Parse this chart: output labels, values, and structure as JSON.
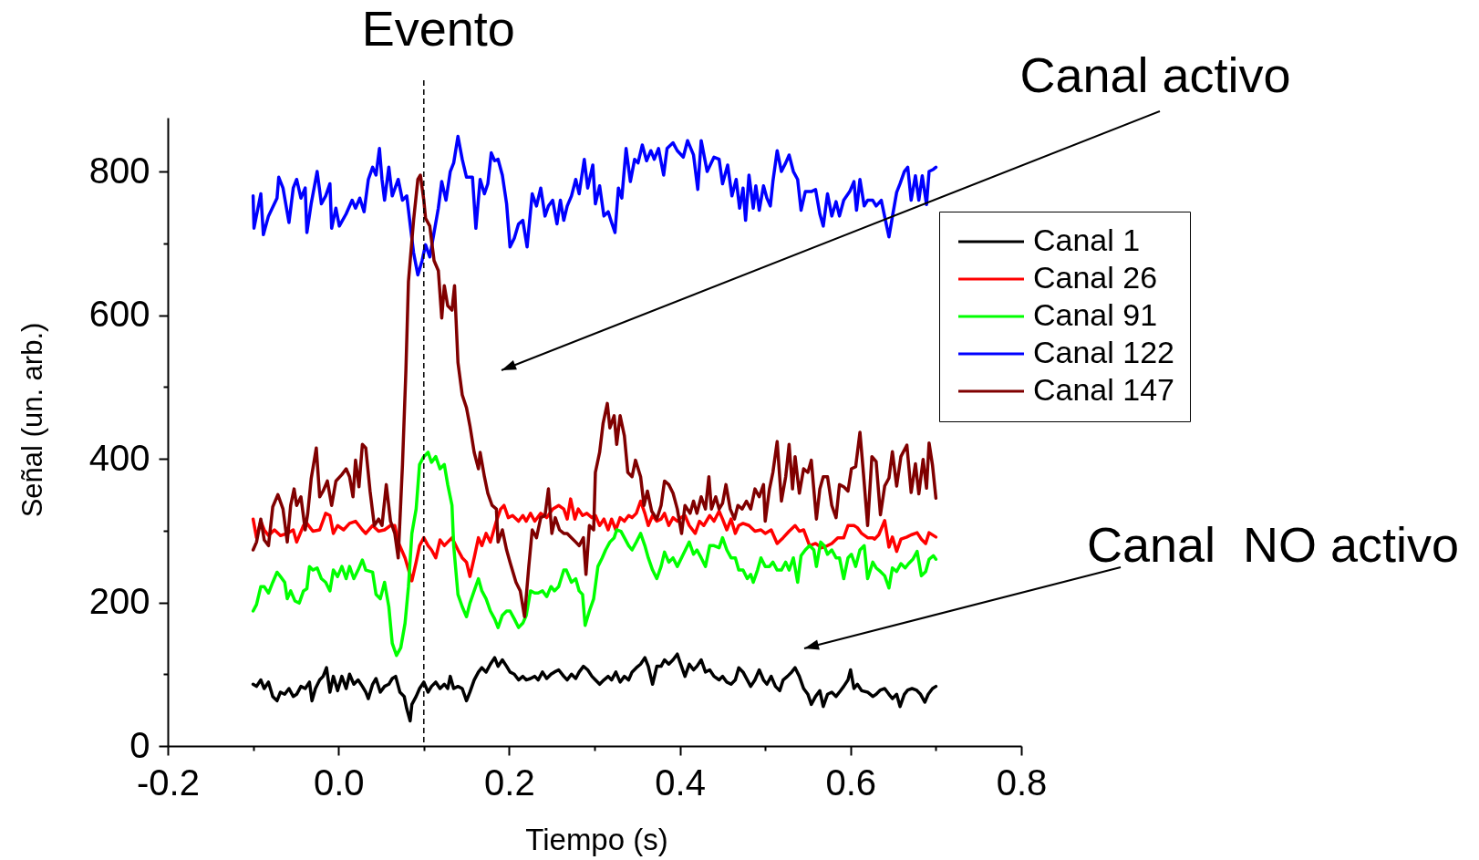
{
  "chart_data": {
    "type": "line",
    "xlabel": "Tiempo (s)",
    "ylabel": "Señal (un. arb.)",
    "xlim": [
      -0.2,
      0.8
    ],
    "ylim": [
      0,
      875
    ],
    "xticks": [
      -0.2,
      {
        "value": -0.1,
        "label": null
      },
      {
        "value": 0,
        "label": "0.0"
      },
      {
        "value": 0.1,
        "label": null
      },
      0.2,
      {
        "value": 0.3,
        "label": null
      },
      0.4,
      {
        "value": 0.5,
        "label": null
      },
      0.6,
      {
        "value": 0.7,
        "label": null
      },
      0.8
    ],
    "yticks": [
      0,
      {
        "value": 100,
        "label": null
      },
      200,
      {
        "value": 300,
        "label": null
      },
      400,
      {
        "value": 500,
        "label": null
      },
      600,
      {
        "value": 700,
        "label": null
      },
      800
    ],
    "legend": "top right",
    "ref_lines": [
      {
        "axis": "x",
        "value": 0.1,
        "label": "Evento",
        "color": "#000000",
        "line_style": "dashed"
      }
    ],
    "annotations": [
      "Canal activo",
      "Canal  NO activo"
    ],
    "series": [
      {
        "name": "Canal 1",
        "color": "#000000",
        "x": [
          -0.1,
          -0.096,
          -0.091,
          -0.087,
          -0.082,
          -0.077,
          -0.072,
          -0.068,
          -0.063,
          -0.058,
          -0.053,
          -0.049,
          -0.044,
          -0.039,
          -0.034,
          -0.031,
          -0.027,
          -0.022,
          -0.018,
          -0.014,
          -0.01,
          -0.006,
          -0.001,
          0.004,
          0.009,
          0.013,
          0.018,
          0.023,
          0.028,
          0.032,
          0.035,
          0.04,
          0.044,
          0.049,
          0.054,
          0.059,
          0.063,
          0.067,
          0.072,
          0.077,
          0.08,
          0.084,
          0.086,
          0.091,
          0.095,
          0.1,
          0.105,
          0.109,
          0.114,
          0.119,
          0.124,
          0.128,
          0.131,
          0.135,
          0.14,
          0.145,
          0.15,
          0.154,
          0.159,
          0.164,
          0.168,
          0.173,
          0.178,
          0.183,
          0.187,
          0.192,
          0.197,
          0.201,
          0.206,
          0.211,
          0.216,
          0.22,
          0.225,
          0.23,
          0.234,
          0.239,
          0.244,
          0.249,
          0.253,
          0.258,
          0.264,
          0.268,
          0.273,
          0.278,
          0.282,
          0.287,
          0.292,
          0.297,
          0.301,
          0.306,
          0.311,
          0.316,
          0.32,
          0.325,
          0.33,
          0.335,
          0.34,
          0.344,
          0.349,
          0.354,
          0.359,
          0.363,
          0.368,
          0.373,
          0.378,
          0.382,
          0.387,
          0.392,
          0.397,
          0.401,
          0.406,
          0.411,
          0.416,
          0.42,
          0.425,
          0.43,
          0.435,
          0.44,
          0.446,
          0.45,
          0.455,
          0.46,
          0.465,
          0.469,
          0.474,
          0.479,
          0.483,
          0.488,
          0.493,
          0.498,
          0.502,
          0.507,
          0.512,
          0.517,
          0.521,
          0.526,
          0.531,
          0.535,
          0.54,
          0.545,
          0.55,
          0.554,
          0.559,
          0.564,
          0.568,
          0.573,
          0.578,
          0.583,
          0.587,
          0.592,
          0.597,
          0.6,
          0.604,
          0.608,
          0.613,
          0.62,
          0.626,
          0.63,
          0.635,
          0.64,
          0.645,
          0.649,
          0.654,
          0.658,
          0.663,
          0.667,
          0.672,
          0.677,
          0.682,
          0.687,
          0.691,
          0.696,
          0.7
        ],
        "values": [
          86,
          83,
          92,
          80,
          89,
          69,
          63,
          75,
          72,
          80,
          69,
          72,
          83,
          80,
          89,
          63,
          80,
          92,
          97,
          109,
          75,
          97,
          77,
          97,
          80,
          100,
          86,
          92,
          83,
          75,
          66,
          86,
          94,
          75,
          83,
          86,
          94,
          97,
          75,
          69,
          52,
          35,
          58,
          69,
          80,
          89,
          75,
          83,
          89,
          80,
          86,
          80,
          97,
          80,
          83,
          80,
          63,
          75,
          92,
          103,
          109,
          103,
          114,
          123,
          111,
          120,
          111,
          103,
          100,
          92,
          97,
          92,
          94,
          97,
          92,
          103,
          94,
          100,
          103,
          106,
          97,
          92,
          100,
          94,
          103,
          111,
          106,
          97,
          92,
          86,
          92,
          97,
          92,
          103,
          89,
          97,
          92,
          103,
          109,
          114,
          123,
          111,
          86,
          111,
          111,
          120,
          114,
          120,
          128,
          114,
          97,
          114,
          106,
          111,
          120,
          103,
          106,
          97,
          92,
          97,
          89,
          86,
          92,
          109,
          103,
          92,
          83,
          92,
          106,
          92,
          86,
          97,
          83,
          77,
          92,
          97,
          103,
          109,
          97,
          80,
          72,
          58,
          69,
          77,
          55,
          72,
          75,
          69,
          75,
          83,
          92,
          106,
          80,
          86,
          77,
          75,
          69,
          72,
          78,
          80,
          72,
          66,
          72,
          55,
          72,
          78,
          80,
          78,
          72,
          61,
          72,
          80,
          83
        ]
      },
      {
        "name": "Canal 26",
        "color": "#ff0000",
        "x": [
          -0.1,
          -0.096,
          -0.091,
          -0.087,
          -0.082,
          -0.075,
          -0.068,
          -0.06,
          -0.053,
          -0.049,
          -0.041,
          -0.037,
          -0.03,
          -0.022,
          -0.015,
          -0.01,
          -0.006,
          -0.001,
          0.006,
          0.013,
          0.02,
          0.028,
          0.032,
          0.04,
          0.047,
          0.054,
          0.061,
          0.066,
          0.07,
          0.078,
          0.086,
          0.091,
          0.095,
          0.1,
          0.105,
          0.109,
          0.114,
          0.119,
          0.124,
          0.128,
          0.133,
          0.14,
          0.145,
          0.15,
          0.154,
          0.159,
          0.164,
          0.168,
          0.173,
          0.178,
          0.185,
          0.19,
          0.194,
          0.199,
          0.204,
          0.211,
          0.216,
          0.22,
          0.225,
          0.23,
          0.237,
          0.244,
          0.251,
          0.258,
          0.264,
          0.268,
          0.272,
          0.277,
          0.281,
          0.286,
          0.291,
          0.297,
          0.301,
          0.306,
          0.311,
          0.316,
          0.32,
          0.325,
          0.33,
          0.335,
          0.34,
          0.344,
          0.349,
          0.354,
          0.359,
          0.363,
          0.368,
          0.373,
          0.378,
          0.382,
          0.387,
          0.392,
          0.397,
          0.401,
          0.406,
          0.411,
          0.418,
          0.423,
          0.428,
          0.435,
          0.44,
          0.446,
          0.45,
          0.455,
          0.46,
          0.465,
          0.469,
          0.474,
          0.481,
          0.488,
          0.495,
          0.5,
          0.507,
          0.514,
          0.521,
          0.528,
          0.535,
          0.54,
          0.545,
          0.552,
          0.559,
          0.566,
          0.573,
          0.578,
          0.585,
          0.592,
          0.597,
          0.604,
          0.608,
          0.613,
          0.62,
          0.626,
          0.628,
          0.633,
          0.64,
          0.645,
          0.649,
          0.654,
          0.659,
          0.666,
          0.671,
          0.678,
          0.683,
          0.688,
          0.692,
          0.7
        ],
        "values": [
          316,
          290,
          313,
          301,
          293,
          301,
          293,
          296,
          301,
          284,
          307,
          310,
          299,
          301,
          324,
          321,
          296,
          307,
          301,
          310,
          313,
          301,
          296,
          307,
          299,
          301,
          307,
          307,
          284,
          262,
          230,
          256,
          279,
          290,
          279,
          273,
          262,
          287,
          279,
          284,
          290,
          273,
          262,
          256,
          236,
          262,
          290,
          279,
          296,
          284,
          313,
          330,
          335,
          318,
          321,
          313,
          321,
          313,
          324,
          313,
          324,
          318,
          330,
          335,
          330,
          316,
          344,
          316,
          330,
          321,
          324,
          318,
          321,
          307,
          316,
          301,
          316,
          301,
          318,
          313,
          321,
          318,
          324,
          341,
          324,
          307,
          321,
          313,
          316,
          324,
          307,
          318,
          313,
          318,
          321,
          307,
          296,
          313,
          307,
          321,
          313,
          327,
          316,
          301,
          316,
          296,
          307,
          310,
          307,
          299,
          301,
          296,
          301,
          282,
          290,
          299,
          307,
          299,
          301,
          279,
          282,
          276,
          279,
          282,
          290,
          290,
          307,
          307,
          304,
          296,
          290,
          290,
          288,
          294,
          314,
          277,
          291,
          271,
          288,
          291,
          294,
          297,
          288,
          282,
          297,
          291
        ]
      },
      {
        "name": "Canal 91",
        "color": "#00ff00",
        "x": [
          -0.1,
          -0.096,
          -0.091,
          -0.087,
          -0.082,
          -0.077,
          -0.072,
          -0.068,
          -0.063,
          -0.06,
          -0.056,
          -0.051,
          -0.046,
          -0.041,
          -0.037,
          -0.034,
          -0.03,
          -0.025,
          -0.02,
          -0.015,
          -0.01,
          -0.006,
          -0.001,
          0.004,
          0.009,
          0.013,
          0.018,
          0.023,
          0.028,
          0.032,
          0.04,
          0.044,
          0.049,
          0.054,
          0.059,
          0.063,
          0.068,
          0.073,
          0.078,
          0.082,
          0.086,
          0.091,
          0.095,
          0.1,
          0.105,
          0.109,
          0.114,
          0.119,
          0.124,
          0.128,
          0.133,
          0.135,
          0.14,
          0.145,
          0.15,
          0.154,
          0.159,
          0.164,
          0.168,
          0.173,
          0.178,
          0.183,
          0.187,
          0.192,
          0.197,
          0.201,
          0.206,
          0.211,
          0.216,
          0.22,
          0.225,
          0.23,
          0.234,
          0.239,
          0.244,
          0.249,
          0.253,
          0.258,
          0.264,
          0.267,
          0.273,
          0.278,
          0.282,
          0.286,
          0.289,
          0.294,
          0.299,
          0.304,
          0.309,
          0.313,
          0.318,
          0.323,
          0.326,
          0.331,
          0.335,
          0.34,
          0.344,
          0.349,
          0.354,
          0.359,
          0.363,
          0.368,
          0.373,
          0.378,
          0.382,
          0.387,
          0.392,
          0.397,
          0.404,
          0.411,
          0.416,
          0.42,
          0.425,
          0.43,
          0.435,
          0.44,
          0.446,
          0.45,
          0.455,
          0.46,
          0.465,
          0.469,
          0.474,
          0.479,
          0.483,
          0.486,
          0.491,
          0.495,
          0.5,
          0.505,
          0.509,
          0.514,
          0.519,
          0.524,
          0.528,
          0.533,
          0.538,
          0.542,
          0.547,
          0.552,
          0.557,
          0.56,
          0.565,
          0.569,
          0.573,
          0.578,
          0.583,
          0.587,
          0.592,
          0.597,
          0.601,
          0.606,
          0.611,
          0.616,
          0.62,
          0.626,
          0.63,
          0.635,
          0.64,
          0.645,
          0.649,
          0.654,
          0.659,
          0.664,
          0.668,
          0.673,
          0.678,
          0.683,
          0.688,
          0.692,
          0.697,
          0.7
        ],
        "values": [
          188,
          197,
          222,
          222,
          213,
          228,
          242,
          236,
          228,
          205,
          216,
          202,
          199,
          216,
          219,
          250,
          245,
          248,
          233,
          228,
          216,
          245,
          236,
          250,
          233,
          250,
          233,
          245,
          259,
          245,
          242,
          211,
          205,
          228,
          194,
          143,
          126,
          137,
          171,
          222,
          296,
          330,
          392,
          403,
          409,
          395,
          403,
          386,
          392,
          364,
          335,
          279,
          211,
          194,
          180,
          199,
          216,
          233,
          216,
          205,
          188,
          177,
          165,
          182,
          188,
          188,
          177,
          165,
          171,
          182,
          216,
          213,
          213,
          216,
          208,
          222,
          216,
          222,
          245,
          245,
          228,
          233,
          216,
          211,
          168,
          188,
          205,
          250,
          262,
          273,
          284,
          290,
          301,
          299,
          290,
          279,
          273,
          284,
          296,
          279,
          262,
          245,
          233,
          250,
          270,
          256,
          262,
          250,
          267,
          284,
          267,
          273,
          262,
          250,
          279,
          279,
          276,
          290,
          273,
          262,
          262,
          245,
          245,
          233,
          239,
          228,
          245,
          262,
          250,
          250,
          256,
          245,
          245,
          256,
          245,
          262,
          228,
          265,
          273,
          279,
          273,
          250,
          284,
          279,
          267,
          273,
          262,
          262,
          233,
          262,
          267,
          250,
          273,
          279,
          233,
          256,
          248,
          243,
          237,
          220,
          248,
          243,
          254,
          248,
          254,
          260,
          271,
          237,
          243,
          260,
          265,
          260
        ]
      },
      {
        "name": "Canal 122",
        "color": "#0000ff",
        "x": [
          -0.1,
          -0.099,
          -0.091,
          -0.088,
          -0.082,
          -0.072,
          -0.07,
          -0.065,
          -0.058,
          -0.053,
          -0.049,
          -0.044,
          -0.039,
          -0.037,
          -0.032,
          -0.025,
          -0.02,
          -0.015,
          -0.01,
          -0.008,
          -0.003,
          0.001,
          0.009,
          0.016,
          0.02,
          0.025,
          0.03,
          0.035,
          0.04,
          0.044,
          0.048,
          0.051,
          0.054,
          0.059,
          0.063,
          0.07,
          0.075,
          0.08,
          0.088,
          0.093,
          0.098,
          0.102,
          0.107,
          0.112,
          0.117,
          0.121,
          0.126,
          0.131,
          0.135,
          0.14,
          0.145,
          0.15,
          0.157,
          0.161,
          0.166,
          0.171,
          0.175,
          0.179,
          0.183,
          0.187,
          0.192,
          0.197,
          0.201,
          0.206,
          0.211,
          0.216,
          0.221,
          0.227,
          0.232,
          0.237,
          0.242,
          0.246,
          0.251,
          0.256,
          0.26,
          0.264,
          0.268,
          0.273,
          0.278,
          0.282,
          0.288,
          0.292,
          0.298,
          0.301,
          0.306,
          0.311,
          0.316,
          0.32,
          0.324,
          0.328,
          0.332,
          0.337,
          0.342,
          0.347,
          0.351,
          0.356,
          0.361,
          0.366,
          0.37,
          0.375,
          0.381,
          0.385,
          0.392,
          0.397,
          0.404,
          0.409,
          0.416,
          0.421,
          0.425,
          0.432,
          0.44,
          0.446,
          0.45,
          0.456,
          0.461,
          0.466,
          0.47,
          0.474,
          0.477,
          0.481,
          0.486,
          0.489,
          0.493,
          0.498,
          0.502,
          0.506,
          0.509,
          0.514,
          0.519,
          0.524,
          0.528,
          0.533,
          0.538,
          0.542,
          0.547,
          0.554,
          0.559,
          0.564,
          0.568,
          0.573,
          0.578,
          0.583,
          0.587,
          0.592,
          0.599,
          0.604,
          0.607,
          0.611,
          0.616,
          0.62,
          0.626,
          0.63,
          0.636,
          0.64,
          0.645,
          0.649,
          0.654,
          0.658,
          0.663,
          0.667,
          0.671,
          0.676,
          0.68,
          0.684,
          0.689,
          0.692,
          0.697,
          0.7
        ],
        "values": [
          766,
          721,
          769,
          712,
          738,
          763,
          792,
          777,
          729,
          777,
          789,
          763,
          777,
          715,
          755,
          800,
          755,
          766,
          783,
          721,
          749,
          724,
          741,
          760,
          749,
          763,
          744,
          789,
          806,
          795,
          832,
          789,
          760,
          806,
          766,
          789,
          760,
          766,
          687,
          656,
          676,
          698,
          681,
          715,
          749,
          786,
          760,
          800,
          812,
          849,
          817,
          792,
          792,
          721,
          789,
          769,
          783,
          826,
          815,
          817,
          795,
          755,
          695,
          707,
          727,
          732,
          695,
          769,
          752,
          777,
          738,
          752,
          760,
          727,
          760,
          732,
          752,
          766,
          789,
          769,
          817,
          777,
          809,
          755,
          780,
          738,
          744,
          729,
          715,
          777,
          763,
          832,
          786,
          817,
          812,
          837,
          815,
          829,
          817,
          832,
          795,
          832,
          840,
          829,
          820,
          843,
          823,
          775,
          843,
          800,
          820,
          817,
          783,
          809,
          766,
          789,
          749,
          777,
          732,
          795,
          749,
          780,
          746,
          780,
          763,
          752,
          786,
          829,
          800,
          812,
          823,
          800,
          789,
          746,
          772,
          772,
          775,
          741,
          724,
          769,
          738,
          758,
          738,
          760,
          772,
          786,
          746,
          789,
          752,
          760,
          760,
          752,
          760,
          737,
          709,
          737,
          771,
          783,
          800,
          806,
          760,
          794,
          760,
          794,
          754,
          800,
          803,
          806
        ]
      },
      {
        "name": "Canal 147",
        "color": "#800000",
        "x": [
          -0.1,
          -0.096,
          -0.091,
          -0.087,
          -0.082,
          -0.077,
          -0.071,
          -0.065,
          -0.06,
          -0.056,
          -0.052,
          -0.049,
          -0.044,
          -0.039,
          -0.036,
          -0.032,
          -0.026,
          -0.022,
          -0.018,
          -0.013,
          -0.008,
          -0.003,
          0.004,
          0.009,
          0.013,
          0.017,
          0.02,
          0.024,
          0.028,
          0.032,
          0.037,
          0.042,
          0.047,
          0.051,
          0.056,
          0.061,
          0.066,
          0.07,
          0.075,
          0.079,
          0.082,
          0.088,
          0.093,
          0.096,
          0.1,
          0.102,
          0.107,
          0.112,
          0.117,
          0.121,
          0.124,
          0.128,
          0.133,
          0.136,
          0.14,
          0.145,
          0.15,
          0.154,
          0.159,
          0.164,
          0.166,
          0.171,
          0.175,
          0.18,
          0.185,
          0.187,
          0.192,
          0.197,
          0.201,
          0.208,
          0.213,
          0.218,
          0.223,
          0.227,
          0.232,
          0.237,
          0.242,
          0.246,
          0.25,
          0.254,
          0.259,
          0.264,
          0.268,
          0.273,
          0.278,
          0.282,
          0.287,
          0.29,
          0.294,
          0.299,
          0.301,
          0.306,
          0.31,
          0.315,
          0.318,
          0.323,
          0.326,
          0.33,
          0.335,
          0.339,
          0.344,
          0.348,
          0.354,
          0.358,
          0.362,
          0.367,
          0.373,
          0.378,
          0.382,
          0.387,
          0.392,
          0.397,
          0.402,
          0.406,
          0.412,
          0.416,
          0.42,
          0.425,
          0.43,
          0.434,
          0.437,
          0.442,
          0.446,
          0.45,
          0.454,
          0.459,
          0.464,
          0.468,
          0.473,
          0.478,
          0.483,
          0.488,
          0.493,
          0.498,
          0.5,
          0.505,
          0.509,
          0.514,
          0.519,
          0.524,
          0.528,
          0.532,
          0.535,
          0.54,
          0.545,
          0.55,
          0.554,
          0.56,
          0.564,
          0.568,
          0.573,
          0.578,
          0.583,
          0.587,
          0.592,
          0.597,
          0.601,
          0.606,
          0.611,
          0.615,
          0.62,
          0.625,
          0.63,
          0.635,
          0.64,
          0.645,
          0.649,
          0.654,
          0.659,
          0.666,
          0.671,
          0.676,
          0.68,
          0.685,
          0.689,
          0.692,
          0.696,
          0.7
        ],
        "values": [
          273,
          284,
          316,
          287,
          279,
          333,
          350,
          330,
          284,
          335,
          358,
          335,
          347,
          301,
          324,
          372,
          415,
          347,
          355,
          369,
          335,
          369,
          378,
          386,
          375,
          347,
          398,
          361,
          420,
          415,
          355,
          307,
          316,
          307,
          364,
          313,
          296,
          262,
          392,
          523,
          647,
          732,
          789,
          795,
          760,
          735,
          724,
          676,
          662,
          596,
          641,
          613,
          607,
          641,
          534,
          489,
          471,
          446,
          409,
          386,
          409,
          375,
          352,
          335,
          330,
          284,
          301,
          273,
          256,
          228,
          216,
          180,
          250,
          301,
          290,
          318,
          321,
          358,
          296,
          318,
          301,
          296,
          296,
          290,
          284,
          279,
          290,
          239,
          307,
          301,
          381,
          409,
          449,
          477,
          443,
          460,
          420,
          460,
          432,
          381,
          375,
          398,
          375,
          335,
          355,
          327,
          316,
          335,
          369,
          364,
          352,
          330,
          296,
          335,
          324,
          341,
          324,
          347,
          330,
          375,
          330,
          347,
          330,
          338,
          364,
          330,
          316,
          335,
          330,
          341,
          330,
          358,
          347,
          364,
          313,
          358,
          381,
          424,
          341,
          375,
          420,
          358,
          403,
          352,
          386,
          381,
          398,
          316,
          358,
          375,
          375,
          335,
          318,
          364,
          361,
          355,
          386,
          389,
          437,
          381,
          307,
          403,
          396,
          322,
          362,
          373,
          410,
          362,
          403,
          419,
          353,
          393,
          351,
          399,
          359,
          422,
          391,
          345
        ]
      }
    ]
  }
}
